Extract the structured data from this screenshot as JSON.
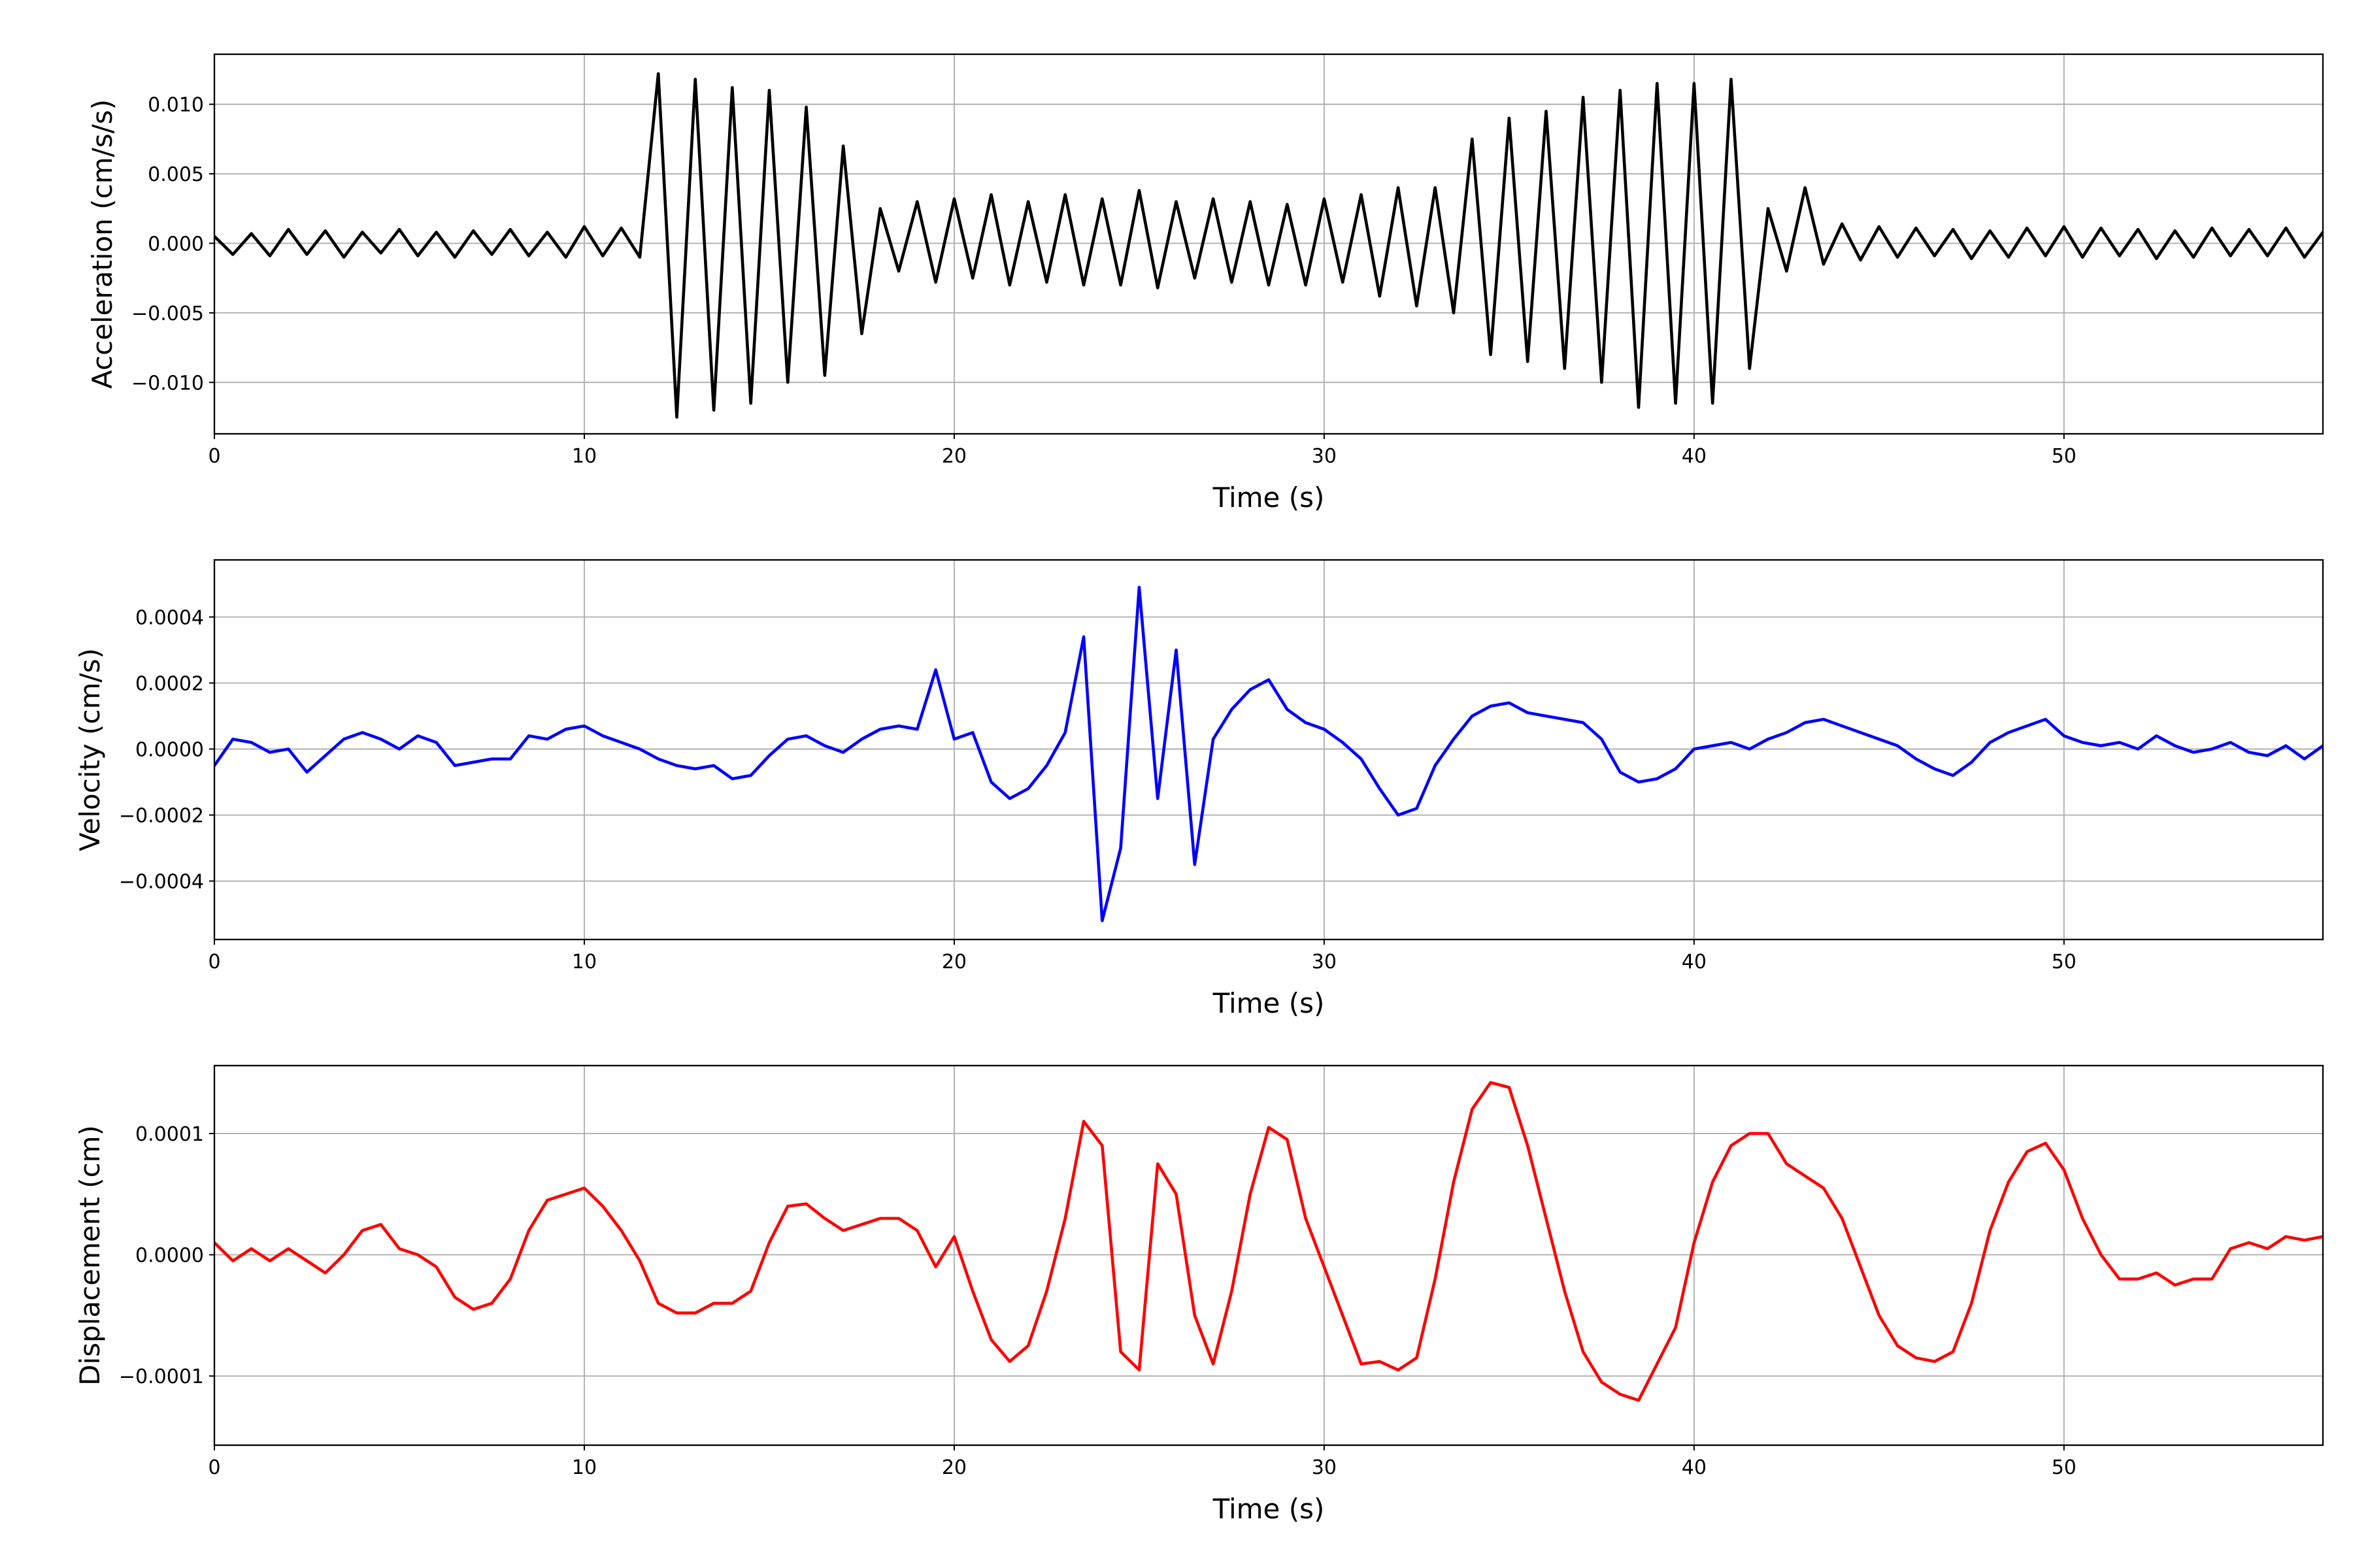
{
  "chart_data": [
    {
      "type": "line",
      "x_label": "Time (s)",
      "y_label": "Acceleration (cm/s/s)",
      "color": "#000000",
      "grid": true,
      "xlim": [
        0,
        57
      ],
      "xticks": [
        0,
        10,
        20,
        30,
        40,
        50
      ],
      "ylim": [
        -0.0137,
        0.0136
      ],
      "yticks": [
        {
          "value": -0.01,
          "label": "−0.010"
        },
        {
          "value": -0.005,
          "label": "−0.005"
        },
        {
          "value": 0,
          "label": "0.000"
        },
        {
          "value": 0.005,
          "label": "0.005"
        },
        {
          "value": 0.01,
          "label": "0.010"
        }
      ],
      "x": [
        0,
        0.5,
        1,
        1.5,
        2,
        2.5,
        3,
        3.5,
        4,
        4.5,
        5,
        5.5,
        6,
        6.5,
        7,
        7.5,
        8,
        8.5,
        9,
        9.5,
        10,
        10.5,
        11,
        11.5,
        12,
        12.5,
        13,
        13.5,
        14,
        14.5,
        15,
        15.5,
        16,
        16.5,
        17,
        17.5,
        18,
        18.5,
        19,
        19.5,
        20,
        20.5,
        21,
        21.5,
        22,
        22.5,
        23,
        23.5,
        24,
        24.5,
        25,
        25.5,
        26,
        26.5,
        27,
        27.5,
        28,
        28.5,
        29,
        29.5,
        30,
        30.5,
        31,
        31.5,
        32,
        32.5,
        33,
        33.5,
        34,
        34.5,
        35,
        35.5,
        36,
        36.5,
        37,
        37.5,
        38,
        38.5,
        39,
        39.5,
        40,
        40.5,
        41,
        41.5,
        42,
        42.5,
        43,
        43.5,
        44,
        44.5,
        45,
        45.5,
        46,
        46.5,
        47,
        47.5,
        48,
        48.5,
        49,
        49.5,
        50,
        50.5,
        51,
        51.5,
        52,
        52.5,
        53,
        53.5,
        54,
        54.5,
        55,
        55.5,
        56,
        56.5,
        57
      ],
      "values": [
        0.0005,
        -0.0008,
        0.0007,
        -0.0009,
        0.001,
        -0.0008,
        0.0009,
        -0.001,
        0.0008,
        -0.0007,
        0.001,
        -0.0009,
        0.0008,
        -0.001,
        0.0009,
        -0.0008,
        0.001,
        -0.0009,
        0.0008,
        -0.001,
        0.0012,
        -0.0009,
        0.0011,
        -0.001,
        0.0122,
        -0.0125,
        0.0118,
        -0.012,
        0.0112,
        -0.0115,
        0.011,
        -0.01,
        0.0098,
        -0.0095,
        0.007,
        -0.0065,
        0.0025,
        -0.002,
        0.003,
        -0.0028,
        0.0032,
        -0.0025,
        0.0035,
        -0.003,
        0.003,
        -0.0028,
        0.0035,
        -0.003,
        0.0032,
        -0.003,
        0.0038,
        -0.0032,
        0.003,
        -0.0025,
        0.0032,
        -0.0028,
        0.003,
        -0.003,
        0.0028,
        -0.003,
        0.0032,
        -0.0028,
        0.0035,
        -0.0038,
        0.004,
        -0.0045,
        0.004,
        -0.005,
        0.0075,
        -0.008,
        0.009,
        -0.0085,
        0.0095,
        -0.009,
        0.0105,
        -0.01,
        0.011,
        -0.0118,
        0.0115,
        -0.0115,
        0.0115,
        -0.0115,
        0.0118,
        -0.009,
        0.0025,
        -0.002,
        0.004,
        -0.0015,
        0.0014,
        -0.0012,
        0.0012,
        -0.001,
        0.0011,
        -0.0009,
        0.001,
        -0.0011,
        0.0009,
        -0.001,
        0.0011,
        -0.0009,
        0.0012,
        -0.001,
        0.0011,
        -0.0009,
        0.001,
        -0.0011,
        0.0009,
        -0.001,
        0.0011,
        -0.0009,
        0.001,
        -0.0009,
        0.0011,
        -0.001,
        0.0008
      ]
    },
    {
      "type": "line",
      "x_label": "Time (s)",
      "y_label": "Velocity (cm/s)",
      "color": "#0000ff",
      "grid": true,
      "xlim": [
        0,
        57
      ],
      "xticks": [
        0,
        10,
        20,
        30,
        40,
        50
      ],
      "ylim": [
        -0.000577,
        0.000573
      ],
      "yticks": [
        {
          "value": -0.0004,
          "label": "−0.0004"
        },
        {
          "value": -0.0002,
          "label": "−0.0002"
        },
        {
          "value": 0,
          "label": "0.0000"
        },
        {
          "value": 0.0002,
          "label": "0.0002"
        },
        {
          "value": 0.0004,
          "label": "0.0004"
        }
      ],
      "x": [
        0,
        0.5,
        1,
        1.5,
        2,
        2.5,
        3,
        3.5,
        4,
        4.5,
        5,
        5.5,
        6,
        6.5,
        7,
        7.5,
        8,
        8.5,
        9,
        9.5,
        10,
        10.5,
        11,
        11.5,
        12,
        12.5,
        13,
        13.5,
        14,
        14.5,
        15,
        15.5,
        16,
        16.5,
        17,
        17.5,
        18,
        18.5,
        19,
        19.5,
        20,
        20.5,
        21,
        21.5,
        22,
        22.5,
        23,
        23.5,
        24,
        24.5,
        25,
        25.5,
        26,
        26.5,
        27,
        27.5,
        28,
        28.5,
        29,
        29.5,
        30,
        30.5,
        31,
        31.5,
        32,
        32.5,
        33,
        33.5,
        34,
        34.5,
        35,
        35.5,
        36,
        36.5,
        37,
        37.5,
        38,
        38.5,
        39,
        39.5,
        40,
        40.5,
        41,
        41.5,
        42,
        42.5,
        43,
        43.5,
        44,
        44.5,
        45,
        45.5,
        46,
        46.5,
        47,
        47.5,
        48,
        48.5,
        49,
        49.5,
        50,
        50.5,
        51,
        51.5,
        52,
        52.5,
        53,
        53.5,
        54,
        54.5,
        55,
        55.5,
        56,
        56.5,
        57
      ],
      "values": [
        -5e-05,
        3e-05,
        2e-05,
        -1e-05,
        0,
        -7e-05,
        -2e-05,
        3e-05,
        5e-05,
        3e-05,
        0,
        4e-05,
        2e-05,
        -5e-05,
        -4e-05,
        -3e-05,
        -3e-05,
        4e-05,
        3e-05,
        6e-05,
        7e-05,
        4e-05,
        2e-05,
        0,
        -3e-05,
        -5e-05,
        -6e-05,
        -5e-05,
        -9e-05,
        -8e-05,
        -2e-05,
        3e-05,
        4e-05,
        1e-05,
        -1e-05,
        3e-05,
        6e-05,
        7e-05,
        6e-05,
        0.00024,
        3e-05,
        5e-05,
        -0.0001,
        -0.00015,
        -0.00012,
        -5e-05,
        5e-05,
        0.00034,
        -0.00052,
        -0.0003,
        0.00049,
        -0.00015,
        0.0003,
        -0.00035,
        3e-05,
        0.00012,
        0.00018,
        0.00021,
        0.00012,
        8e-05,
        6e-05,
        2e-05,
        -3e-05,
        -0.00012,
        -0.0002,
        -0.00018,
        -5e-05,
        3e-05,
        0.0001,
        0.00013,
        0.00014,
        0.00011,
        0.0001,
        9e-05,
        8e-05,
        3e-05,
        -7e-05,
        -0.0001,
        -9e-05,
        -6e-05,
        0,
        1e-05,
        2e-05,
        0,
        3e-05,
        5e-05,
        8e-05,
        9e-05,
        7e-05,
        5e-05,
        3e-05,
        1e-05,
        -3e-05,
        -6e-05,
        -8e-05,
        -4e-05,
        2e-05,
        5e-05,
        7e-05,
        9e-05,
        4e-05,
        2e-05,
        1e-05,
        2e-05,
        0,
        4e-05,
        1e-05,
        -1e-05,
        0,
        2e-05,
        -1e-05,
        -2e-05,
        1e-05,
        -3e-05,
        1e-05
      ]
    },
    {
      "type": "line",
      "x_label": "Time (s)",
      "y_label": "Displacement (cm)",
      "color": "#ff0000",
      "grid": true,
      "xlim": [
        0,
        57
      ],
      "xticks": [
        0,
        10,
        20,
        30,
        40,
        50
      ],
      "ylim": [
        -0.000157,
        0.000156
      ],
      "yticks": [
        {
          "value": -0.0001,
          "label": "−0.0001"
        },
        {
          "value": 0,
          "label": "0.0000"
        },
        {
          "value": 0.0001,
          "label": "0.0001"
        }
      ],
      "x": [
        0,
        0.5,
        1,
        1.5,
        2,
        2.5,
        3,
        3.5,
        4,
        4.5,
        5,
        5.5,
        6,
        6.5,
        7,
        7.5,
        8,
        8.5,
        9,
        9.5,
        10,
        10.5,
        11,
        11.5,
        12,
        12.5,
        13,
        13.5,
        14,
        14.5,
        15,
        15.5,
        16,
        16.5,
        17,
        17.5,
        18,
        18.5,
        19,
        19.5,
        20,
        20.5,
        21,
        21.5,
        22,
        22.5,
        23,
        23.5,
        24,
        24.5,
        25,
        25.5,
        26,
        26.5,
        27,
        27.5,
        28,
        28.5,
        29,
        29.5,
        30,
        30.5,
        31,
        31.5,
        32,
        32.5,
        33,
        33.5,
        34,
        34.5,
        35,
        35.5,
        36,
        36.5,
        37,
        37.5,
        38,
        38.5,
        39,
        39.5,
        40,
        40.5,
        41,
        41.5,
        42,
        42.5,
        43,
        43.5,
        44,
        44.5,
        45,
        45.5,
        46,
        46.5,
        47,
        47.5,
        48,
        48.5,
        49,
        49.5,
        50,
        50.5,
        51,
        51.5,
        52,
        52.5,
        53,
        53.5,
        54,
        54.5,
        55,
        55.5,
        56,
        56.5,
        57
      ],
      "values": [
        1e-05,
        -5e-06,
        5e-06,
        -5e-06,
        5e-06,
        -5e-06,
        -1.5e-05,
        0,
        2e-05,
        2.5e-05,
        5e-06,
        0,
        -1e-05,
        -3.5e-05,
        -4.5e-05,
        -4e-05,
        -2e-05,
        2e-05,
        4.5e-05,
        5e-05,
        5.5e-05,
        4e-05,
        2e-05,
        -5e-06,
        -4e-05,
        -4.8e-05,
        -4.8e-05,
        -4e-05,
        -4e-05,
        -3e-05,
        1e-05,
        4e-05,
        4.2e-05,
        3e-05,
        2e-05,
        2.5e-05,
        3e-05,
        3e-05,
        2e-05,
        -1e-05,
        1.5e-05,
        -3e-05,
        -7e-05,
        -8.8e-05,
        -7.5e-05,
        -3e-05,
        3e-05,
        0.00011,
        9e-05,
        -8e-05,
        -9.5e-05,
        7.5e-05,
        5e-05,
        -5e-05,
        -9e-05,
        -3e-05,
        5e-05,
        0.000105,
        9.5e-05,
        3e-05,
        -1e-05,
        -5e-05,
        -9e-05,
        -8.8e-05,
        -9.5e-05,
        -8.5e-05,
        -2e-05,
        6e-05,
        0.00012,
        0.000142,
        0.000138,
        9e-05,
        3e-05,
        -3e-05,
        -8e-05,
        -0.000105,
        -0.000115,
        -0.00012,
        -9e-05,
        -6e-05,
        1e-05,
        6e-05,
        9e-05,
        0.0001,
        0.0001,
        7.5e-05,
        6.5e-05,
        5.5e-05,
        3e-05,
        -1e-05,
        -5e-05,
        -7.5e-05,
        -8.5e-05,
        -8.8e-05,
        -8e-05,
        -4e-05,
        2e-05,
        6e-05,
        8.5e-05,
        9.2e-05,
        7e-05,
        3e-05,
        0,
        -2e-05,
        -2e-05,
        -1.5e-05,
        -2.5e-05,
        -2e-05,
        -2e-05,
        5e-06,
        1e-05,
        5e-06,
        1.5e-05,
        1.2e-05,
        1.5e-05
      ]
    }
  ]
}
